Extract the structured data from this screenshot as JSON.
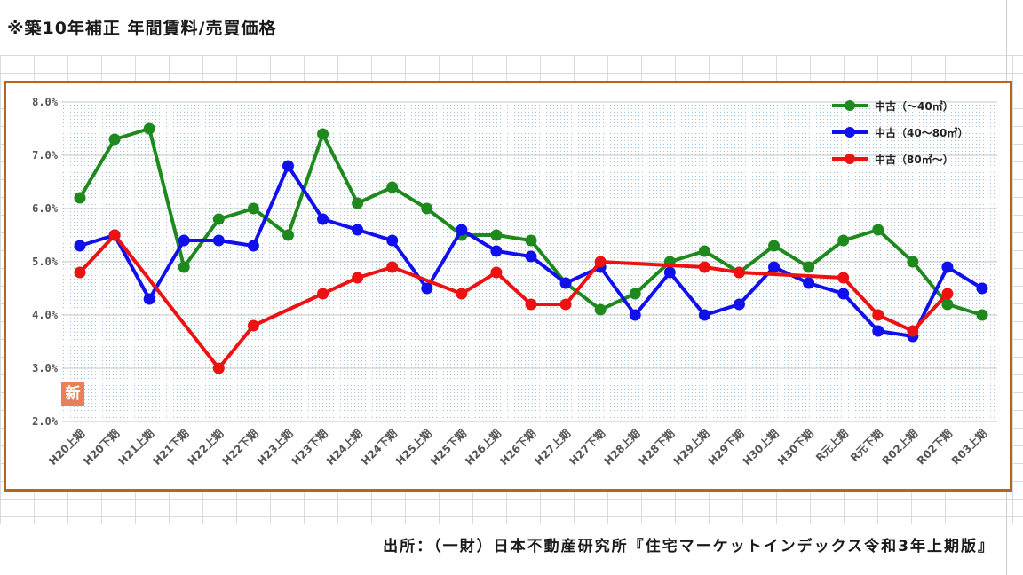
{
  "title": "※築10年補正 年間賃料/売買価格",
  "source": "出所：（一財）日本不動産研究所『住宅マーケットインデックス令和3年上期版』",
  "badge": "新",
  "chart_data": {
    "type": "line",
    "categories": [
      "H20上期",
      "H20下期",
      "H21上期",
      "H21下期",
      "H22上期",
      "H22下期",
      "H23上期",
      "H23下期",
      "H24上期",
      "H24下期",
      "H25上期",
      "H25下期",
      "H26上期",
      "H26下期",
      "H27上期",
      "H27下期",
      "H28上期",
      "H28下期",
      "H29上期",
      "H29下期",
      "H30上期",
      "H30下期",
      "R元上期",
      "R元下期",
      "R02上期",
      "R02下期",
      "R03上期"
    ],
    "ylim": [
      2.0,
      8.0
    ],
    "yticks": [
      "2.0%",
      "3.0%",
      "4.0%",
      "5.0%",
      "6.0%",
      "7.0%",
      "8.0%"
    ],
    "grid": true,
    "legend_position": "top-right",
    "series": [
      {
        "name": "中古（～40㎡）",
        "color": "#1e8a1e",
        "values": [
          6.2,
          7.3,
          7.5,
          4.9,
          5.8,
          6.0,
          5.5,
          7.4,
          6.1,
          6.4,
          6.0,
          5.5,
          5.5,
          5.4,
          4.6,
          4.1,
          4.4,
          5.0,
          5.2,
          4.8,
          5.3,
          4.9,
          5.4,
          5.6,
          5.0,
          4.2,
          4.0
        ]
      },
      {
        "name": "中古（40～80㎡）",
        "color": "#1010ee",
        "values": [
          5.3,
          5.5,
          4.3,
          5.4,
          5.4,
          5.3,
          6.8,
          5.8,
          5.6,
          5.4,
          4.5,
          5.6,
          5.2,
          5.1,
          4.6,
          4.9,
          4.0,
          4.8,
          4.0,
          4.2,
          4.9,
          4.6,
          4.4,
          3.7,
          3.6,
          4.9,
          4.5
        ]
      },
      {
        "name": "中古（80㎡～）",
        "color": "#ee1111",
        "values": [
          4.8,
          5.5,
          null,
          null,
          3.0,
          3.8,
          null,
          4.4,
          4.7,
          4.9,
          null,
          4.4,
          4.8,
          4.2,
          4.2,
          5.0,
          null,
          null,
          4.9,
          4.8,
          null,
          null,
          4.7,
          4.0,
          3.7,
          4.4,
          null
        ]
      }
    ]
  }
}
